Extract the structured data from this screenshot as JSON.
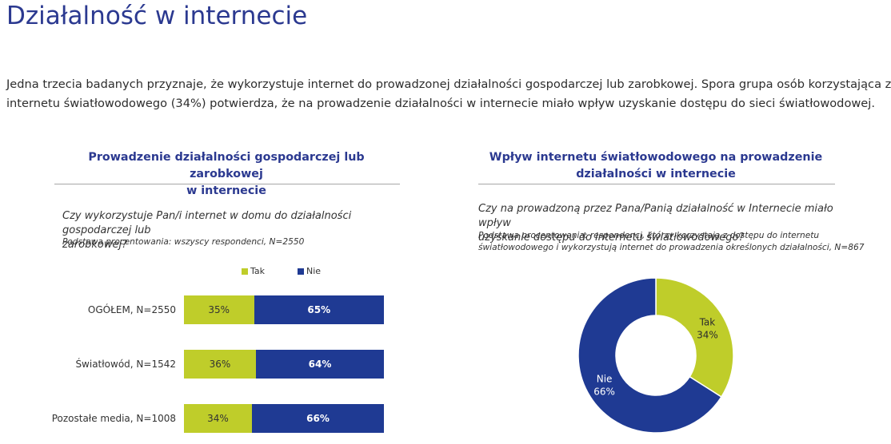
{
  "page": {
    "title": "Działalność w internecie",
    "intro_lines": [
      "Jedna trzecia badanych przyznaje, że wykorzystuje internet do prowadzonej działalności gospodarczej lub zarobkowej. Spora grupa osób korzystająca z",
      "internetu światłowodowego (34%) potwierdza, że na prowadzenie działalności w internecie miało wpływ uzyskanie dostępu do sieci światłowodowej."
    ]
  },
  "colors": {
    "tak": "#bfcd2a",
    "nie": "#1f3a93",
    "title": "#2b3990"
  },
  "chart_data": [
    {
      "type": "bar",
      "orientation": "horizontal-stacked-100",
      "title_lines": [
        "Prowadzenie działalności gospodarczej lub zarobkowej",
        "w internecie"
      ],
      "question_lines": [
        "Czy wykorzystuje Pan/i internet w domu do działalności gospodarczej lub",
        "zarobkowej?"
      ],
      "basis": "Podstawa procentowania: wszyscy respondenci, N=2550",
      "legend": [
        "Tak",
        "Nie"
      ],
      "categories": [
        "OGÓŁEM, N=2550",
        "Światłowód, N=1542",
        "Pozostałe media, N=1008"
      ],
      "series": [
        {
          "name": "Tak",
          "values": [
            35,
            36,
            34
          ],
          "labels": [
            "35%",
            "36%",
            "34%"
          ]
        },
        {
          "name": "Nie",
          "values": [
            65,
            64,
            66
          ],
          "labels": [
            "65%",
            "64%",
            "66%"
          ]
        }
      ]
    },
    {
      "type": "pie",
      "variant": "donut",
      "title_lines": [
        "Wpływ internetu światłowodowego na prowadzenie",
        "działalności w internecie"
      ],
      "question_lines": [
        "Czy na prowadzoną przez Pana/Panią działalność w Internecie miało wpływ",
        "uzyskanie dostępu do internetu światłowodowego?"
      ],
      "basis_lines": [
        "Podstawa procentowania: respondenci, którzy korzystają z dostępu do internetu",
        "światłowodowego i wykorzystują internet do prowadzenia określonych działalności, N=867"
      ],
      "slices": [
        {
          "name": "Tak",
          "value": 34,
          "label": "34%"
        },
        {
          "name": "Nie",
          "value": 66,
          "label": "66%"
        }
      ]
    }
  ]
}
